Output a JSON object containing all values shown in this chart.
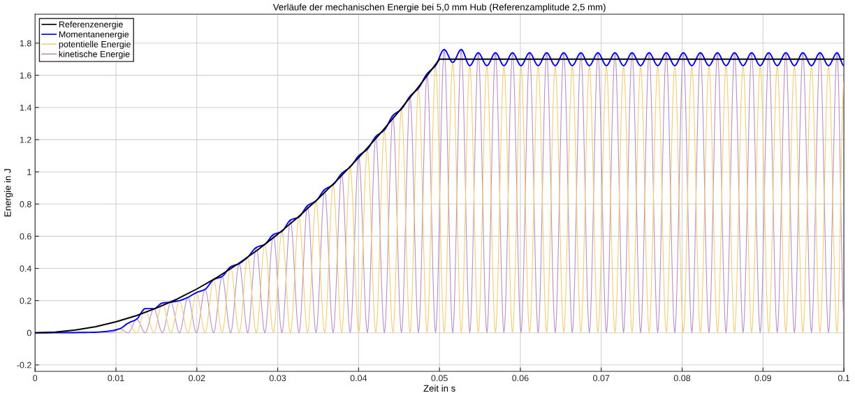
{
  "chart_data": {
    "type": "line",
    "title": "Verläufe der mechanischen Energie bei 5,0 mm Hub (Referenzamplitude 2,5 mm)",
    "xlabel": "Zeit in s",
    "ylabel": "Energie in J",
    "xlim": [
      0,
      0.1
    ],
    "xticks": [
      0,
      0.01,
      0.02,
      0.03,
      0.04,
      0.05,
      0.06,
      0.07,
      0.08,
      0.09,
      0.1
    ],
    "ylim": [
      -0.24,
      1.98
    ],
    "yticks": [
      -0.2,
      0,
      0.2,
      0.4,
      0.6,
      0.8,
      1,
      1.2,
      1.4,
      1.6,
      1.8
    ],
    "grid": true,
    "legend": "top left",
    "series": [
      {
        "name": "Referenzenergie",
        "color": "#000000",
        "x": [
          0,
          0.0025,
          0.005,
          0.0075,
          0.01,
          0.0125,
          0.015,
          0.0175,
          0.02,
          0.0225,
          0.025,
          0.0275,
          0.03,
          0.0325,
          0.035,
          0.0375,
          0.04,
          0.0425,
          0.045,
          0.0475,
          0.05,
          0.1
        ],
        "values": [
          0,
          0.004,
          0.017,
          0.038,
          0.068,
          0.106,
          0.153,
          0.208,
          0.272,
          0.344,
          0.425,
          0.514,
          0.612,
          0.718,
          0.833,
          0.956,
          1.088,
          1.228,
          1.377,
          1.534,
          1.7,
          1.7
        ]
      },
      {
        "name": "Momentanenergie",
        "color": "#0000ff",
        "x": [
          0,
          0.00729,
          0.00835,
          0.0094,
          0.01046,
          0.01151,
          0.01257,
          0.01362,
          0.01468,
          0.01574,
          0.01679,
          0.01785,
          0.0189,
          0.01996,
          0.02102,
          0.02207,
          0.02313,
          0.02418,
          0.02524,
          0.02629,
          0.02735,
          0.02841,
          0.02946,
          0.03052,
          0.03157,
          0.03263,
          0.03369,
          0.03474,
          0.0358,
          0.03685,
          0.03791,
          0.03896,
          0.04002,
          0.04108,
          0.04213,
          0.04319,
          0.04424,
          0.0453,
          0.04636,
          0.04741,
          0.04847,
          0.04952,
          0.05058,
          0.05164,
          0.05269,
          0.05375,
          0.0548,
          0.05586,
          0.05692,
          0.05797,
          0.05903,
          0.06008,
          0.06114,
          0.0622,
          0.06325,
          0.06431,
          0.06536,
          0.06642,
          0.06748,
          0.06853,
          0.06959,
          0.07064,
          0.0717,
          0.07276,
          0.07381,
          0.07487,
          0.07592,
          0.07698,
          0.07804,
          0.07909,
          0.08015,
          0.0812,
          0.08226,
          0.08332,
          0.08437,
          0.08543,
          0.08648,
          0.08754,
          0.0886,
          0.08965,
          0.09071,
          0.09176,
          0.09282,
          0.09388,
          0.09493,
          0.09599,
          0.09704,
          0.0981,
          0.09916,
          0.1
        ],
        "values": [
          0,
          0.003,
          0.006,
          0.012,
          0.025,
          0.06,
          0.085,
          0.15,
          0.15,
          0.185,
          0.19,
          0.2,
          0.22,
          0.25,
          0.27,
          0.33,
          0.35,
          0.41,
          0.43,
          0.47,
          0.53,
          0.55,
          0.61,
          0.63,
          0.7,
          0.72,
          0.79,
          0.82,
          0.89,
          0.92,
          0.99,
          1.03,
          1.1,
          1.14,
          1.22,
          1.26,
          1.35,
          1.39,
          1.47,
          1.52,
          1.61,
          1.66,
          1.76,
          1.68,
          1.76,
          1.66,
          1.74,
          1.66,
          1.74,
          1.66,
          1.74,
          1.66,
          1.74,
          1.66,
          1.74,
          1.66,
          1.74,
          1.66,
          1.74,
          1.66,
          1.74,
          1.66,
          1.74,
          1.66,
          1.74,
          1.66,
          1.74,
          1.66,
          1.74,
          1.66,
          1.74,
          1.66,
          1.74,
          1.66,
          1.74,
          1.66,
          1.74,
          1.66,
          1.74,
          1.66,
          1.74,
          1.66,
          1.74,
          1.66,
          1.74,
          1.66,
          1.74,
          1.66,
          1.74,
          1.66
        ]
      },
      {
        "name": "potentielle Energie",
        "color": "#f2cd72",
        "x": [
          0,
          0.00729,
          0.00835,
          0.0094,
          0.01046,
          0.01151,
          0.01257,
          0.01362,
          0.01468,
          0.01574,
          0.01679,
          0.01785,
          0.0189,
          0.01996,
          0.02102,
          0.02207,
          0.02313,
          0.02418,
          0.02524,
          0.02629,
          0.02735,
          0.02841,
          0.02946,
          0.03052,
          0.03157,
          0.03263,
          0.03369,
          0.03474,
          0.0358,
          0.03685,
          0.03791,
          0.03896,
          0.04002,
          0.04108,
          0.04213,
          0.04319,
          0.04424,
          0.0453,
          0.04636,
          0.04741,
          0.04847,
          0.04952,
          0.05058,
          0.05164,
          0.05269,
          0.05375,
          0.0548,
          0.05586,
          0.05692,
          0.05797,
          0.05903,
          0.06008,
          0.06114,
          0.0622,
          0.06325,
          0.06431,
          0.06536,
          0.06642,
          0.06748,
          0.06853,
          0.06959,
          0.07064,
          0.0717,
          0.07276,
          0.07381,
          0.07487,
          0.07592,
          0.07698,
          0.07804,
          0.07909,
          0.08015,
          0.0812,
          0.08226,
          0.08332,
          0.08437,
          0.08543,
          0.08648,
          0.08754,
          0.0886,
          0.08965,
          0.09071,
          0.09176,
          0.09282,
          0.09388,
          0.09493,
          0.09599,
          0.09704,
          0.0981,
          0.09916,
          0.1
        ],
        "values": [
          0,
          0.003,
          0,
          0.012,
          0,
          0.06,
          0,
          0.15,
          0,
          0.185,
          0,
          0.2,
          0,
          0.25,
          0,
          0.33,
          0,
          0.41,
          0,
          0.47,
          0,
          0.55,
          0,
          0.63,
          0,
          0.72,
          0,
          0.82,
          0,
          0.92,
          0,
          1.03,
          0,
          1.14,
          0,
          1.26,
          0,
          1.39,
          0,
          1.52,
          0,
          1.66,
          0,
          1.68,
          0,
          1.66,
          0,
          1.66,
          0,
          1.66,
          0,
          1.66,
          0,
          1.66,
          0,
          1.66,
          0,
          1.66,
          0,
          1.66,
          0,
          1.66,
          0,
          1.66,
          0,
          1.66,
          0,
          1.66,
          0,
          1.66,
          0,
          1.66,
          0,
          1.66,
          0,
          1.66,
          0,
          1.66,
          0,
          1.66,
          0,
          1.66,
          0,
          1.66,
          0,
          1.66,
          0,
          1.66,
          0,
          1.56
        ]
      },
      {
        "name": "kinetische Energie",
        "color": "#b98fc4",
        "x": [
          0,
          0.00729,
          0.00835,
          0.0094,
          0.01046,
          0.01151,
          0.01257,
          0.01362,
          0.01468,
          0.01574,
          0.01679,
          0.01785,
          0.0189,
          0.01996,
          0.02102,
          0.02207,
          0.02313,
          0.02418,
          0.02524,
          0.02629,
          0.02735,
          0.02841,
          0.02946,
          0.03052,
          0.03157,
          0.03263,
          0.03369,
          0.03474,
          0.0358,
          0.03685,
          0.03791,
          0.03896,
          0.04002,
          0.04108,
          0.04213,
          0.04319,
          0.04424,
          0.0453,
          0.04636,
          0.04741,
          0.04847,
          0.04952,
          0.05058,
          0.05164,
          0.05269,
          0.05375,
          0.0548,
          0.05586,
          0.05692,
          0.05797,
          0.05903,
          0.06008,
          0.06114,
          0.0622,
          0.06325,
          0.06431,
          0.06536,
          0.06642,
          0.06748,
          0.06853,
          0.06959,
          0.07064,
          0.0717,
          0.07276,
          0.07381,
          0.07487,
          0.07592,
          0.07698,
          0.07804,
          0.07909,
          0.08015,
          0.0812,
          0.08226,
          0.08332,
          0.08437,
          0.08543,
          0.08648,
          0.08754,
          0.0886,
          0.08965,
          0.09071,
          0.09176,
          0.09282,
          0.09388,
          0.09493,
          0.09599,
          0.09704,
          0.0981,
          0.09916,
          0.1
        ],
        "values": [
          0,
          0,
          0.006,
          0,
          0.025,
          0,
          0.085,
          0,
          0.15,
          0,
          0.19,
          0,
          0.22,
          0,
          0.27,
          0,
          0.35,
          0,
          0.43,
          0,
          0.53,
          0,
          0.61,
          0,
          0.7,
          0,
          0.79,
          0,
          0.89,
          0,
          0.99,
          0,
          1.1,
          0,
          1.22,
          0,
          1.35,
          0,
          1.47,
          0,
          1.61,
          0,
          1.76,
          0,
          1.76,
          0,
          1.74,
          0,
          1.74,
          0,
          1.74,
          0,
          1.74,
          0,
          1.74,
          0,
          1.74,
          0,
          1.74,
          0,
          1.74,
          0,
          1.74,
          0,
          1.74,
          0,
          1.74,
          0,
          1.74,
          0,
          1.74,
          0,
          1.74,
          0,
          1.74,
          0,
          1.74,
          0,
          1.74,
          0,
          1.74,
          0,
          1.74,
          0,
          1.74,
          0,
          1.74,
          0,
          1.74,
          0.1
        ]
      }
    ]
  }
}
